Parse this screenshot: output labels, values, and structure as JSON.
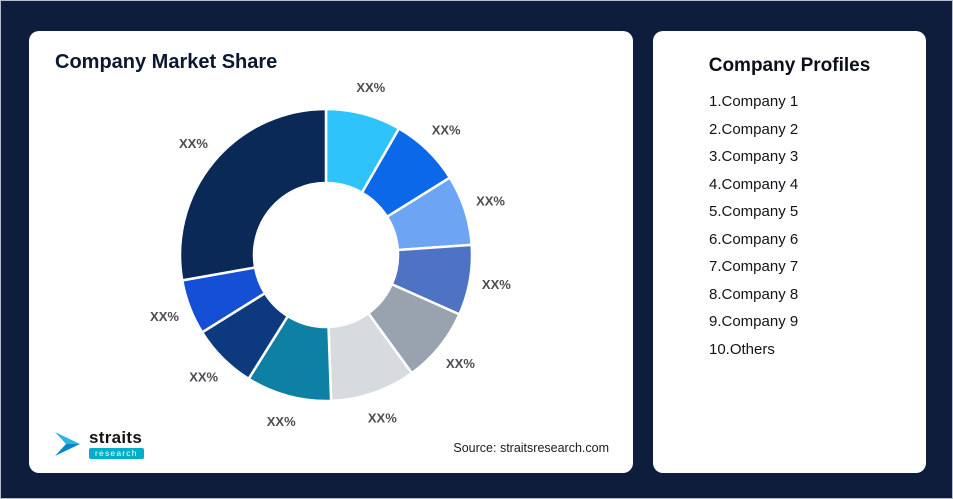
{
  "page": {
    "background_color": "#0E1D3C"
  },
  "left_card": {
    "title": "Company Market Share",
    "source": "Source: straitsresearch.com",
    "logo": {
      "brand": "straits",
      "tagline": "research",
      "mark_color_top": "#2BB7E5",
      "mark_color_bottom": "#0A86C8"
    }
  },
  "right_card": {
    "title": "Company Profiles",
    "items": [
      "1.Company 1",
      "2.Company 2",
      "3.Company 3",
      "4.Company 4",
      "5.Company 5",
      "6.Company 6",
      "7.Company 7",
      "8.Company 8",
      "9.Company 9",
      "10.Others"
    ]
  },
  "chart_data": {
    "type": "pie",
    "variant": "donut",
    "title": "Company Market Share",
    "legend_position": "none",
    "source": "Source: straitsresearch.com",
    "note_on_values": "All slice data labels display the placeholder text XX%; slice sizes below are estimated in degrees from the rendered arcs, clockwise from 12 o'clock",
    "segments": [
      {
        "label": "XX%",
        "degrees": 30,
        "approx_percent": 8.3,
        "color": "#2EC3FB"
      },
      {
        "label": "XX%",
        "degrees": 28,
        "approx_percent": 7.8,
        "color": "#0A68E9"
      },
      {
        "label": "XX%",
        "degrees": 28,
        "approx_percent": 7.8,
        "color": "#6EA4F4"
      },
      {
        "label": "XX%",
        "degrees": 28,
        "approx_percent": 7.8,
        "color": "#4E73C5"
      },
      {
        "label": "XX%",
        "degrees": 30,
        "approx_percent": 8.3,
        "color": "#99A3AF"
      },
      {
        "label": "XX%",
        "degrees": 34,
        "approx_percent": 9.4,
        "color": "#D7DBE0"
      },
      {
        "label": "XX%",
        "degrees": 34,
        "approx_percent": 9.4,
        "color": "#0E80A4"
      },
      {
        "label": "XX%",
        "degrees": 26,
        "approx_percent": 7.2,
        "color": "#0D3A7E"
      },
      {
        "label": "XX%",
        "degrees": 22,
        "approx_percent": 6.1,
        "color": "#154FD6"
      },
      {
        "label": "XX%",
        "degrees": 100,
        "approx_percent": 27.8,
        "color": "#0A2956"
      }
    ],
    "donut_geometry": {
      "outer_radius": 146,
      "inner_radius": 72,
      "hole_color": "#ffffff"
    }
  }
}
